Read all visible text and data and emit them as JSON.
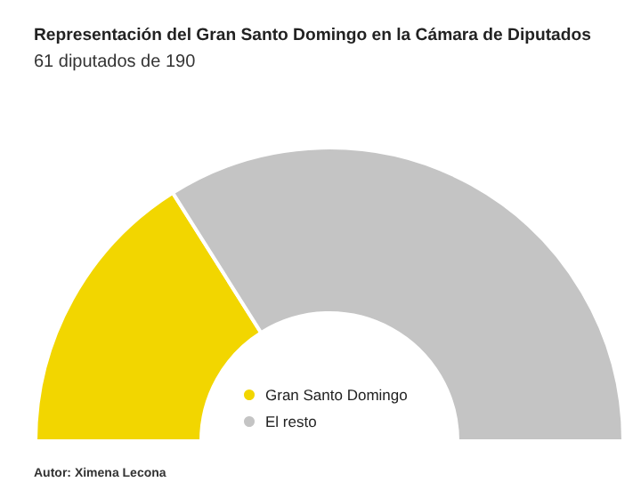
{
  "chart_data": {
    "type": "donut",
    "title": "Representación del Gran Santo Domingo en la Cámara de Diputados",
    "subtitle": "61 diputados de 190",
    "categories": [
      "Gran Santo Domingo",
      "El resto"
    ],
    "values": [
      32.1,
      67.9
    ],
    "colors": [
      "#f2d600",
      "#c4c4c4"
    ],
    "legend": "bottom",
    "annotations": [
      "Autor: Ximena Lecona"
    ]
  }
}
